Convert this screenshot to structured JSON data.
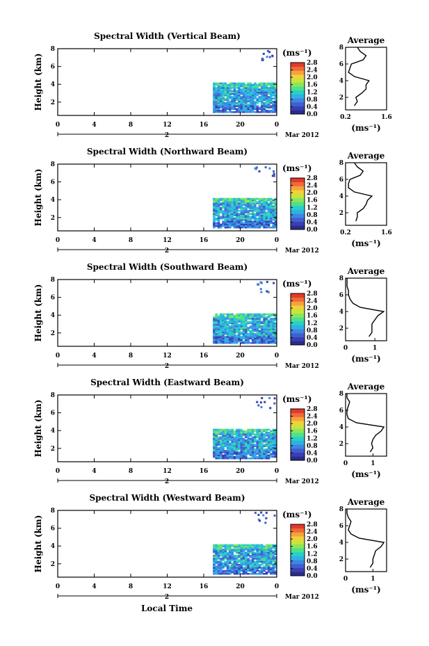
{
  "figure": {
    "bottom_label": "Local Time",
    "date_label": "Mar 2012",
    "day_label": "2",
    "unit_label": "(ms⁻¹)",
    "average_title": "Average",
    "height_label": "Height (km)"
  },
  "colors": {
    "colormap": [
      "#2b2b8c",
      "#3a3fb3",
      "#3f5fd0",
      "#3f86e0",
      "#2fb0e6",
      "#27d0c8",
      "#4fe08a",
      "#8ce65a",
      "#c8e43e",
      "#f0d23a",
      "#f7a23a",
      "#ef6a3a",
      "#e23a2a"
    ],
    "axis": "#000000",
    "profile": "#000000"
  },
  "chart_data": [
    {
      "type": "heatmap",
      "title": "Spectral Width (Vertical Beam)",
      "x": {
        "label": "Local Time",
        "range": [
          0,
          24
        ],
        "ticks": [
          "0",
          "4",
          "8",
          "12",
          "16",
          "20",
          "0"
        ]
      },
      "y": {
        "label": "Height (km)",
        "range": [
          0.5,
          8
        ],
        "ticks": [
          "2",
          "4",
          "6",
          "8"
        ]
      },
      "colorbar": {
        "ticks": [
          "0.0",
          "0.4",
          "0.8",
          "1.2",
          "1.6",
          "2.0",
          "2.4",
          "2.8"
        ],
        "range": [
          0,
          2.8
        ]
      },
      "data_region": {
        "time": [
          17,
          24
        ],
        "height": [
          0.8,
          4.2
        ],
        "typical_value": 0.9
      },
      "profile": {
        "title": "Average",
        "x_ticks": [
          "0.2",
          "1.6"
        ],
        "xlim": [
          0.2,
          1.6
        ],
        "y_ticks": [
          "2",
          "4",
          "6",
          "8"
        ],
        "heights": [
          1,
          1.5,
          2,
          2.5,
          3,
          3.5,
          4,
          4.5,
          5,
          5.5,
          6,
          6.5,
          7,
          7.5,
          8
        ],
        "values": [
          0.5,
          0.6,
          0.55,
          0.75,
          0.9,
          0.9,
          1.0,
          0.5,
          0.3,
          0.35,
          0.4,
          0.8,
          0.9,
          0.7,
          0.6
        ]
      }
    },
    {
      "type": "heatmap",
      "title": "Spectral Width (Northward Beam)",
      "x": {
        "label": "Local Time",
        "range": [
          0,
          24
        ],
        "ticks": [
          "0",
          "4",
          "8",
          "12",
          "16",
          "20",
          "0"
        ]
      },
      "y": {
        "label": "Height (km)",
        "range": [
          0.5,
          8
        ],
        "ticks": [
          "2",
          "4",
          "6",
          "8"
        ]
      },
      "colorbar": {
        "ticks": [
          "0.0",
          "0.4",
          "0.8",
          "1.2",
          "1.6",
          "2.0",
          "2.4",
          "2.8"
        ],
        "range": [
          0,
          2.8
        ]
      },
      "data_region": {
        "time": [
          17,
          24
        ],
        "height": [
          0.8,
          4.2
        ],
        "typical_value": 0.9
      },
      "profile": {
        "title": "Average",
        "x_ticks": [
          "0.2",
          "1.6"
        ],
        "xlim": [
          0.2,
          1.6
        ],
        "y_ticks": [
          "2",
          "4",
          "6",
          "8"
        ],
        "heights": [
          1,
          1.5,
          2,
          2.5,
          3,
          3.5,
          4,
          4.5,
          5,
          5.5,
          6,
          6.5,
          7,
          7.5,
          8
        ],
        "values": [
          0.55,
          0.6,
          0.6,
          0.8,
          0.9,
          0.95,
          1.1,
          0.5,
          0.3,
          0.3,
          0.35,
          0.7,
          0.8,
          0.6,
          0.5
        ]
      }
    },
    {
      "type": "heatmap",
      "title": "Spectral Width (Southward Beam)",
      "x": {
        "label": "Local Time",
        "range": [
          0,
          24
        ],
        "ticks": [
          "0",
          "4",
          "8",
          "12",
          "16",
          "20",
          "0"
        ]
      },
      "y": {
        "label": "Height (km)",
        "range": [
          0.5,
          8
        ],
        "ticks": [
          "2",
          "4",
          "6",
          "8"
        ]
      },
      "colorbar": {
        "ticks": [
          "0.0",
          "0.4",
          "0.8",
          "1.2",
          "1.6",
          "2.0",
          "2.4",
          "2.8"
        ],
        "range": [
          0,
          2.8
        ]
      },
      "data_region": {
        "time": [
          17,
          24
        ],
        "height": [
          0.8,
          4.2
        ],
        "typical_value": 0.9
      },
      "profile": {
        "title": "Average",
        "x_ticks": [
          "0",
          "1"
        ],
        "xlim": [
          0,
          1.4
        ],
        "y_ticks": [
          "2",
          "4",
          "6",
          "8"
        ],
        "heights": [
          1,
          1.5,
          2,
          2.5,
          3,
          3.5,
          4,
          4.5,
          5,
          5.5,
          6,
          6.5,
          7,
          7.5,
          8
        ],
        "values": [
          0.8,
          0.9,
          0.9,
          0.9,
          1.0,
          1.1,
          1.3,
          0.5,
          0.25,
          0.15,
          0.1,
          0.1,
          0.05,
          0.05,
          0.05
        ]
      }
    },
    {
      "type": "heatmap",
      "title": "Spectral Width (Eastward Beam)",
      "x": {
        "label": "Local Time",
        "range": [
          0,
          24
        ],
        "ticks": [
          "0",
          "4",
          "8",
          "12",
          "16",
          "20",
          "0"
        ]
      },
      "y": {
        "label": "Height (km)",
        "range": [
          0.5,
          8
        ],
        "ticks": [
          "2",
          "4",
          "6",
          "8"
        ]
      },
      "colorbar": {
        "ticks": [
          "0.0",
          "0.4",
          "0.8",
          "1.2",
          "1.6",
          "2.0",
          "2.4",
          "2.8"
        ],
        "range": [
          0,
          2.8
        ]
      },
      "data_region": {
        "time": [
          17,
          24
        ],
        "height": [
          0.8,
          4.2
        ],
        "typical_value": 0.9
      },
      "profile": {
        "title": "Average",
        "x_ticks": [
          "0",
          "1"
        ],
        "xlim": [
          0,
          1.5
        ],
        "y_ticks": [
          "2",
          "4",
          "6",
          "8"
        ],
        "heights": [
          1,
          1.5,
          2,
          2.5,
          3,
          3.5,
          4,
          4.5,
          5,
          5.5,
          6,
          6.5,
          7,
          7.5,
          8
        ],
        "values": [
          0.9,
          1.0,
          0.95,
          1.0,
          1.1,
          1.3,
          1.4,
          0.4,
          0.1,
          0.05,
          0.05,
          0.1,
          0.15,
          0.05,
          0.05
        ]
      }
    },
    {
      "type": "heatmap",
      "title": "Spectral Width (Westward Beam)",
      "x": {
        "label": "Local Time",
        "range": [
          0,
          24
        ],
        "ticks": [
          "0",
          "4",
          "8",
          "12",
          "16",
          "20",
          "0"
        ]
      },
      "y": {
        "label": "Height (km)",
        "range": [
          0.5,
          8
        ],
        "ticks": [
          "2",
          "4",
          "6",
          "8"
        ]
      },
      "colorbar": {
        "ticks": [
          "0.0",
          "0.4",
          "0.8",
          "1.2",
          "1.6",
          "2.0",
          "2.4",
          "2.8"
        ],
        "range": [
          0,
          2.8
        ]
      },
      "data_region": {
        "time": [
          17,
          24
        ],
        "height": [
          0.8,
          4.2
        ],
        "typical_value": 0.9
      },
      "profile": {
        "title": "Average",
        "x_ticks": [
          "0",
          "1"
        ],
        "xlim": [
          0,
          1.5
        ],
        "y_ticks": [
          "2",
          "4",
          "6",
          "8"
        ],
        "heights": [
          1,
          1.5,
          2,
          2.5,
          3,
          3.5,
          4,
          4.5,
          5,
          5.5,
          6,
          6.5,
          7,
          7.5,
          8
        ],
        "values": [
          0.9,
          1.0,
          1.0,
          1.05,
          1.1,
          1.3,
          1.4,
          0.5,
          0.2,
          0.1,
          0.15,
          0.2,
          0.1,
          0.05,
          0.05
        ]
      }
    }
  ]
}
